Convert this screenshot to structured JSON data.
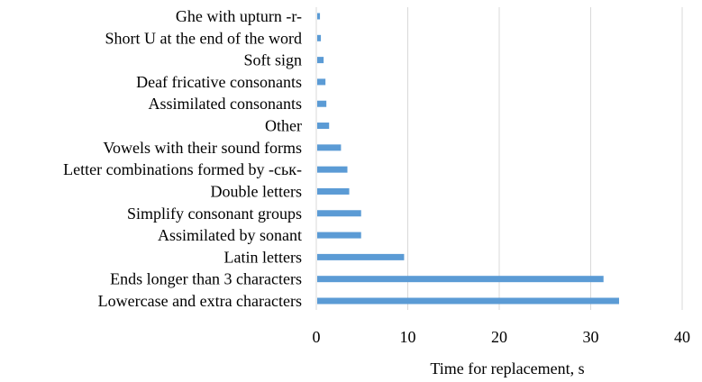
{
  "chart_data": {
    "type": "bar",
    "orientation": "horizontal",
    "title": "",
    "xlabel": "Time for replacement, s",
    "ylabel": "",
    "xlim": [
      0,
      40
    ],
    "x_ticks": [
      "0",
      "10",
      "20",
      "30",
      "40"
    ],
    "grid": "vertical",
    "bar_color": "#5b9bd5",
    "categories": [
      "Lowercase and extra characters",
      "Ends longer than 3 characters",
      "Latin letters",
      "Assimilated by sonant ",
      "Simplify consonant groups",
      "Double letters ",
      "Letter combinations formed by -ськ-",
      "Vowels with their sound forms",
      "Other",
      "Assimilated consonants",
      "Deaf fricative consonants",
      "Soft sign ",
      "Short U at the end of the word",
      "Ghe with upturn -r-"
    ],
    "values": [
      33.1,
      31.4,
      9.6,
      4.9,
      4.9,
      3.6,
      3.4,
      2.7,
      1.4,
      1.1,
      1.0,
      0.8,
      0.5,
      0.4
    ]
  }
}
